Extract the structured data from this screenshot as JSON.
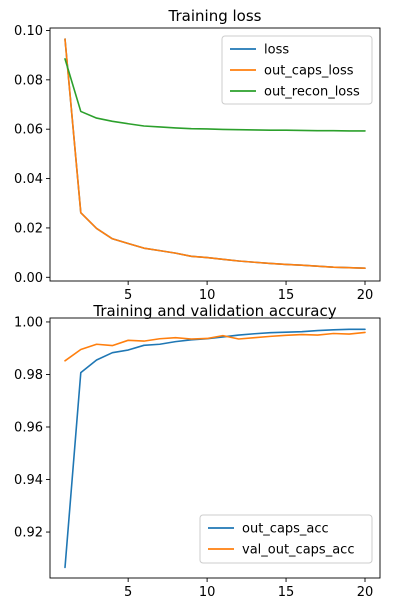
{
  "chart_data": [
    {
      "type": "line",
      "title": "Training loss",
      "xlabel": "",
      "ylabel": "",
      "x": [
        1,
        2,
        3,
        4,
        5,
        6,
        7,
        8,
        9,
        10,
        11,
        12,
        13,
        14,
        15,
        16,
        17,
        18,
        19,
        20
      ],
      "xlim": [
        0.05,
        20.95
      ],
      "ylim": [
        -0.0015,
        0.101
      ],
      "xticks": [
        5,
        10,
        15,
        20
      ],
      "yticks": [
        0.0,
        0.02,
        0.04,
        0.06,
        0.08,
        0.1
      ],
      "ytick_labels": [
        "0.00",
        "0.02",
        "0.04",
        "0.06",
        "0.08",
        "0.10"
      ],
      "grid": false,
      "legend_position": "top-right",
      "series": [
        {
          "name": "loss",
          "color": "#1f77b4",
          "values": [
            0.0965,
            0.0262,
            0.0198,
            0.0156,
            0.0137,
            0.0118,
            0.0108,
            0.0098,
            0.0085,
            0.008,
            0.0073,
            0.0066,
            0.0061,
            0.0056,
            0.0052,
            0.0049,
            0.0045,
            0.0041,
            0.0039,
            0.0037
          ]
        },
        {
          "name": "out_caps_loss",
          "color": "#ff7f0e",
          "values": [
            0.0965,
            0.0262,
            0.0198,
            0.0156,
            0.0137,
            0.0118,
            0.0108,
            0.0098,
            0.0085,
            0.008,
            0.0073,
            0.0066,
            0.0061,
            0.0056,
            0.0052,
            0.0049,
            0.0045,
            0.0041,
            0.0039,
            0.0037
          ]
        },
        {
          "name": "out_recon_loss",
          "color": "#2ca02c",
          "values": [
            0.0885,
            0.0672,
            0.0645,
            0.0632,
            0.0622,
            0.0613,
            0.0609,
            0.0605,
            0.0602,
            0.0601,
            0.0599,
            0.0598,
            0.0597,
            0.0596,
            0.0596,
            0.0595,
            0.0594,
            0.0594,
            0.0593,
            0.0593
          ]
        }
      ]
    },
    {
      "type": "line",
      "title": "Training and validation accuracy",
      "xlabel": "",
      "ylabel": "",
      "x": [
        1,
        2,
        3,
        4,
        5,
        6,
        7,
        8,
        9,
        10,
        11,
        12,
        13,
        14,
        15,
        16,
        17,
        18,
        19,
        20
      ],
      "xlim": [
        0.05,
        20.95
      ],
      "ylim": [
        0.9025,
        1.0015
      ],
      "xticks": [
        5,
        10,
        15,
        20
      ],
      "yticks": [
        0.92,
        0.94,
        0.96,
        0.98,
        1.0
      ],
      "ytick_labels": [
        "0.92",
        "0.94",
        "0.96",
        "0.98",
        "1.00"
      ],
      "grid": false,
      "legend_position": "bottom-right",
      "series": [
        {
          "name": "out_caps_acc",
          "color": "#1f77b4",
          "values": [
            0.9065,
            0.9807,
            0.9855,
            0.9883,
            0.9893,
            0.9911,
            0.9915,
            0.9925,
            0.9932,
            0.9936,
            0.9943,
            0.995,
            0.9955,
            0.9959,
            0.9961,
            0.9963,
            0.9967,
            0.997,
            0.9972,
            0.9972
          ]
        },
        {
          "name": "val_out_caps_acc",
          "color": "#ff7f0e",
          "values": [
            0.9852,
            0.9895,
            0.9915,
            0.991,
            0.993,
            0.9927,
            0.9936,
            0.994,
            0.9935,
            0.9937,
            0.9948,
            0.9935,
            0.994,
            0.9945,
            0.9949,
            0.9952,
            0.995,
            0.9956,
            0.9954,
            0.996
          ]
        }
      ]
    }
  ]
}
